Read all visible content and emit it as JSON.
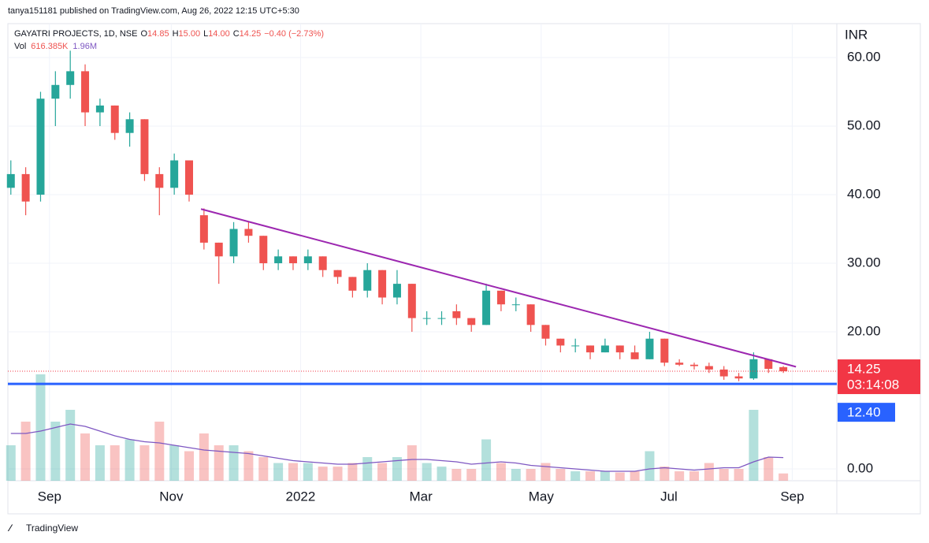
{
  "header": {
    "publisher": "tanya151181 published on TradingView.com, Aug 26, 2022 12:15 UTC+5:30",
    "brand": "TradingView"
  },
  "chart_data": {
    "type": "candlestick",
    "currency": "INR",
    "legend": {
      "symbol": "GAYATRI PROJECTS, 1D, NSE",
      "items": [
        {
          "key": "O",
          "value": "14.85"
        },
        {
          "key": "H",
          "value": "15.00"
        },
        {
          "key": "L",
          "value": "14.00"
        },
        {
          "key": "C",
          "value": "14.25"
        }
      ],
      "change": "−0.40 (−2.73%)",
      "volume_label": "Vol",
      "volume_value": "616.385K",
      "volume_ma_value": "1.96M"
    },
    "up_color": "#26a69a",
    "down_color": "#ef5350",
    "candles": [
      [
        41,
        45,
        40,
        43
      ],
      [
        43,
        44,
        37,
        39
      ],
      [
        40,
        55,
        39,
        54
      ],
      [
        54,
        58,
        50,
        56
      ],
      [
        56,
        61,
        54,
        58
      ],
      [
        58,
        59,
        50,
        52
      ],
      [
        52,
        54,
        50,
        53
      ],
      [
        53,
        53,
        48,
        49
      ],
      [
        49,
        52,
        47,
        51
      ],
      [
        51,
        51,
        42,
        43
      ],
      [
        43,
        44,
        37,
        41
      ],
      [
        41,
        46,
        40,
        45
      ],
      [
        45,
        45,
        39,
        40
      ],
      [
        37,
        38,
        32,
        33
      ],
      [
        33,
        33,
        27,
        31
      ],
      [
        31,
        36,
        30,
        35
      ],
      [
        35,
        36,
        33,
        34
      ],
      [
        34,
        34,
        29,
        30
      ],
      [
        30,
        32,
        29,
        31
      ],
      [
        31,
        31,
        29,
        30
      ],
      [
        30,
        32,
        29,
        31
      ],
      [
        31,
        31,
        28,
        29
      ],
      [
        29,
        29,
        27,
        28
      ],
      [
        28,
        28,
        25,
        26
      ],
      [
        26,
        30,
        25,
        29
      ],
      [
        29,
        29,
        24,
        25
      ],
      [
        25,
        29,
        24,
        27
      ],
      [
        27,
        27,
        20,
        22
      ],
      [
        22,
        23,
        21,
        22
      ],
      [
        22,
        23,
        21,
        22
      ],
      [
        23,
        24,
        21,
        22
      ],
      [
        22,
        22,
        20,
        21
      ],
      [
        21,
        27,
        21,
        26
      ],
      [
        26,
        26,
        23,
        24
      ],
      [
        24,
        25,
        23,
        24
      ],
      [
        24,
        24,
        20,
        21
      ],
      [
        21,
        21,
        18,
        19
      ],
      [
        19,
        19,
        17,
        18
      ],
      [
        18,
        19,
        17,
        18
      ],
      [
        18,
        18,
        16,
        17
      ],
      [
        17,
        19,
        17,
        18
      ],
      [
        18,
        18,
        16,
        17
      ],
      [
        17,
        18,
        16,
        16
      ],
      [
        16,
        20,
        16,
        19
      ],
      [
        19,
        19,
        15,
        15.5
      ],
      [
        15.5,
        16,
        15,
        15.2
      ],
      [
        15.2,
        15.5,
        14.5,
        15
      ],
      [
        15,
        15.5,
        14,
        14.5
      ],
      [
        14.5,
        15,
        13,
        13.5
      ],
      [
        13.5,
        14,
        12.8,
        13.2
      ],
      [
        13.2,
        17,
        13,
        16
      ],
      [
        16,
        16,
        14,
        14.6
      ],
      [
        14.85,
        15,
        14,
        14.25
      ]
    ],
    "volume": [
      3,
      5,
      9,
      5,
      6,
      4,
      3,
      3,
      3.5,
      3,
      5,
      3,
      2.5,
      4,
      3,
      3,
      2.5,
      2,
      1.5,
      1.5,
      1.5,
      1.2,
      1.2,
      1.5,
      2,
      1.5,
      2,
      3,
      1.5,
      1.2,
      1,
      1,
      3.5,
      1.5,
      1,
      1,
      1.5,
      1,
      0.8,
      0.8,
      0.8,
      0.7,
      0.8,
      2.5,
      1.2,
      0.8,
      0.8,
      1.5,
      1,
      1,
      6,
      2,
      0.616385
    ],
    "volume_ma": [
      4,
      4,
      4.2,
      4.5,
      4.8,
      4.6,
      4.2,
      3.8,
      3.5,
      3.3,
      3.2,
      3,
      2.8,
      2.6,
      2.5,
      2.4,
      2.3,
      2.1,
      1.9,
      1.7,
      1.6,
      1.5,
      1.4,
      1.4,
      1.5,
      1.6,
      1.7,
      1.8,
      1.8,
      1.7,
      1.6,
      1.4,
      1.5,
      1.6,
      1.5,
      1.3,
      1.2,
      1.1,
      1,
      0.9,
      0.8,
      0.8,
      0.8,
      1,
      1.1,
      1,
      0.9,
      1,
      1.1,
      1.1,
      1.6,
      2,
      1.96
    ],
    "volume_ma_color": "#7e57c2",
    "volume_ylim": [
      0,
      10
    ],
    "xlim": [
      -0.2,
      55.6
    ],
    "xticks": [
      {
        "value": 2.6,
        "label": "Sep"
      },
      {
        "value": 10.8,
        "label": "Nov"
      },
      {
        "value": 19.5,
        "label": "2022"
      },
      {
        "value": 27.6,
        "label": "Mar"
      },
      {
        "value": 35.7,
        "label": "May"
      },
      {
        "value": 44.3,
        "label": "Jul"
      },
      {
        "value": 52.6,
        "label": "Sep"
      }
    ],
    "ylim": [
      -1.72,
      64.94
    ],
    "yticks": [
      {
        "value": 0,
        "label": "0.00"
      },
      {
        "value": 20,
        "label": "20.00"
      },
      {
        "value": 30,
        "label": "30.00"
      },
      {
        "value": 40,
        "label": "40.00"
      },
      {
        "value": 50,
        "label": "50.00"
      },
      {
        "value": 60,
        "label": "60.00"
      }
    ],
    "grid": true,
    "trendline": {
      "x": [
        12.8,
        52.85
      ],
      "y": [
        37.9,
        14.9
      ],
      "color": "#9c27b0"
    },
    "price_line": {
      "value": 12.4,
      "label": "12.40",
      "color": "#2962ff"
    },
    "last_price": {
      "value": 14.25,
      "label": "14.25",
      "countdown": "03:14:08",
      "color": "#f23645"
    }
  }
}
